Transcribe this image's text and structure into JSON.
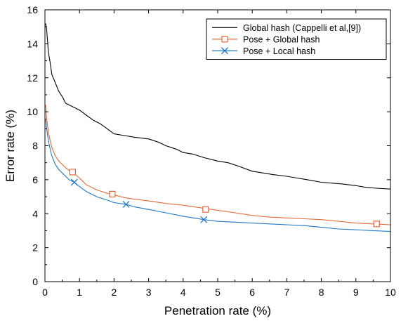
{
  "chart_data": {
    "type": "line",
    "title": "",
    "xlabel": "Penetration rate (%)",
    "ylabel": "Error rate (%)",
    "xlim": [
      0,
      10
    ],
    "ylim": [
      0,
      16
    ],
    "xticks": [
      0,
      1,
      2,
      3,
      4,
      5,
      6,
      7,
      8,
      9,
      10
    ],
    "yticks": [
      0,
      2,
      4,
      6,
      8,
      10,
      12,
      14,
      16
    ],
    "grid": false,
    "legend_position": "top-right",
    "series": [
      {
        "name": "Global hash (Cappelli et al,[9])",
        "color": "#000000",
        "marker": "none",
        "x": [
          0.02,
          0.05,
          0.1,
          0.15,
          0.2,
          0.3,
          0.4,
          0.5,
          0.6,
          0.7,
          0.8,
          1.0,
          1.2,
          1.4,
          1.6,
          1.8,
          2.0,
          2.3,
          2.6,
          3.0,
          3.3,
          3.5,
          3.8,
          4.0,
          4.3,
          4.6,
          5.0,
          5.3,
          5.6,
          6.0,
          6.3,
          6.6,
          7.0,
          7.3,
          7.6,
          8.0,
          8.3,
          8.6,
          9.0,
          9.3,
          9.6,
          10.0
        ],
        "y": [
          15.2,
          14.8,
          13.5,
          12.9,
          12.2,
          11.7,
          11.2,
          10.9,
          10.5,
          10.4,
          10.3,
          10.1,
          9.8,
          9.5,
          9.3,
          9.0,
          8.7,
          8.6,
          8.5,
          8.4,
          8.2,
          8.0,
          7.8,
          7.6,
          7.5,
          7.3,
          7.1,
          7.0,
          6.8,
          6.5,
          6.4,
          6.3,
          6.2,
          6.1,
          6.0,
          5.85,
          5.8,
          5.75,
          5.65,
          5.55,
          5.5,
          5.45
        ],
        "markers": []
      },
      {
        "name": "Pose + Global hash",
        "color": "#e06a3a",
        "marker": "square",
        "x": [
          0.02,
          0.05,
          0.1,
          0.15,
          0.2,
          0.3,
          0.4,
          0.5,
          0.6,
          0.7,
          0.8,
          1.0,
          1.2,
          1.5,
          1.8,
          2.0,
          2.3,
          2.6,
          3.0,
          3.5,
          4.0,
          4.5,
          5.0,
          5.5,
          6.0,
          6.5,
          7.0,
          7.5,
          8.0,
          8.5,
          9.0,
          9.5,
          10.0
        ],
        "y": [
          10.4,
          9.6,
          8.8,
          8.3,
          7.9,
          7.4,
          7.1,
          6.9,
          6.7,
          6.55,
          6.45,
          6.1,
          5.7,
          5.4,
          5.2,
          5.1,
          4.95,
          4.85,
          4.75,
          4.6,
          4.5,
          4.35,
          4.2,
          4.05,
          3.9,
          3.8,
          3.75,
          3.7,
          3.65,
          3.55,
          3.45,
          3.4,
          3.35
        ],
        "markers": [
          {
            "x": 0.8,
            "y": 6.45
          },
          {
            "x": 1.95,
            "y": 5.15
          },
          {
            "x": 4.65,
            "y": 4.25
          },
          {
            "x": 9.6,
            "y": 3.4
          }
        ]
      },
      {
        "name": "Pose + Local hash",
        "color": "#1f77c4",
        "marker": "x",
        "x": [
          0.02,
          0.05,
          0.1,
          0.15,
          0.2,
          0.3,
          0.4,
          0.5,
          0.6,
          0.7,
          0.85,
          1.0,
          1.2,
          1.5,
          1.8,
          2.0,
          2.35,
          2.6,
          3.0,
          3.5,
          4.0,
          4.3,
          4.6,
          5.0,
          5.5,
          6.0,
          6.5,
          7.0,
          7.5,
          8.0,
          8.5,
          9.0,
          9.5,
          10.0
        ],
        "y": [
          9.6,
          9.0,
          8.3,
          7.8,
          7.4,
          6.9,
          6.6,
          6.4,
          6.2,
          6.0,
          5.85,
          5.6,
          5.3,
          5.0,
          4.8,
          4.65,
          4.55,
          4.4,
          4.25,
          4.05,
          3.85,
          3.75,
          3.65,
          3.55,
          3.5,
          3.45,
          3.4,
          3.35,
          3.3,
          3.2,
          3.1,
          3.05,
          3.0,
          2.95
        ],
        "markers": [
          {
            "x": 0.85,
            "y": 5.85
          },
          {
            "x": 2.35,
            "y": 4.55
          },
          {
            "x": 4.6,
            "y": 3.65
          }
        ]
      }
    ]
  }
}
